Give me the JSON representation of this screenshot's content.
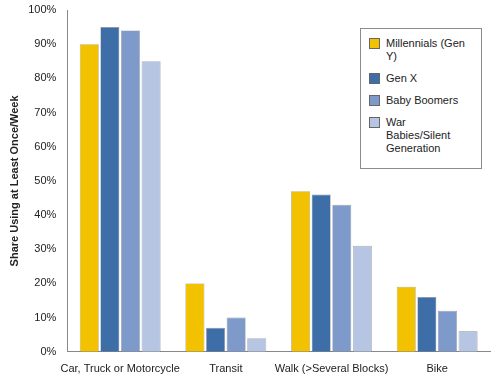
{
  "chart_data": {
    "type": "bar",
    "y_label": "Share Using at Least Once/Week",
    "categories": [
      "Car, Truck or Motorcycle",
      "Transit",
      "Walk (>Several Blocks)",
      "Bike"
    ],
    "series": [
      {
        "name": "Millennials (Gen Y)",
        "color": "#f2c200",
        "values": [
          90,
          20,
          47,
          19
        ]
      },
      {
        "name": "Gen X",
        "color": "#3d6ea8",
        "values": [
          95,
          7,
          46,
          16
        ]
      },
      {
        "name": "Baby Boomers",
        "color": "#7e9acb",
        "values": [
          94,
          10,
          43,
          12
        ]
      },
      {
        "name": "War Babies/Silent Generation",
        "color": "#b6c6e2",
        "values": [
          85,
          4,
          31,
          6
        ]
      }
    ],
    "ylim": [
      0,
      100
    ],
    "yticks": [
      {
        "value": 0,
        "label": "0%"
      },
      {
        "value": 10,
        "label": "10%"
      },
      {
        "value": 20,
        "label": "20%"
      },
      {
        "value": 30,
        "label": "30%"
      },
      {
        "value": 40,
        "label": "40%"
      },
      {
        "value": 50,
        "label": "50%"
      },
      {
        "value": 60,
        "label": "60%"
      },
      {
        "value": 70,
        "label": "70%"
      },
      {
        "value": 80,
        "label": "80%"
      },
      {
        "value": 90,
        "label": "90%"
      },
      {
        "value": 100,
        "label": "100%"
      }
    ],
    "grid": false,
    "legend": "upper right"
  }
}
